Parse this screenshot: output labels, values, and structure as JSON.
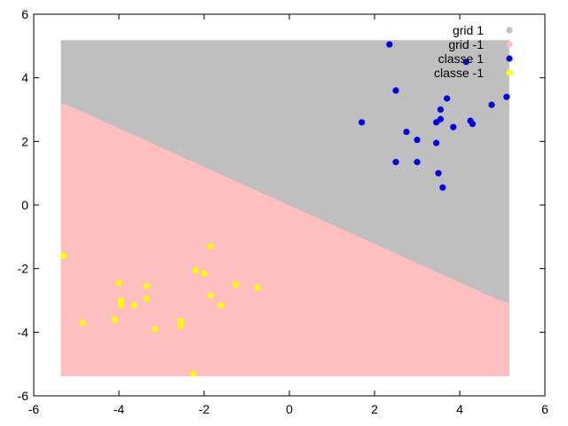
{
  "chart_data": {
    "type": "scatter",
    "title": "",
    "xlabel": "",
    "ylabel": "",
    "xlim": [
      -6,
      6
    ],
    "ylim": [
      -6,
      6
    ],
    "xticks": [
      -6,
      -4,
      -2,
      0,
      2,
      4,
      6
    ],
    "yticks": [
      -6,
      -4,
      -2,
      0,
      2,
      4,
      6
    ],
    "grid": false,
    "legend_position": "top-right",
    "grid_region": {
      "x_range": [
        -5.3,
        5.1
      ],
      "y_range": [
        -5.3,
        5.1
      ],
      "boundary": [
        [
          -5.3,
          3.2
        ],
        [
          5.1,
          -3.1
        ]
      ]
    },
    "series": [
      {
        "name": "grid 1",
        "color": "#bfbfbf",
        "kind": "grid-region-above"
      },
      {
        "name": "grid -1",
        "color": "#ffbfbf",
        "kind": "grid-region-below"
      },
      {
        "name": "classe 1",
        "color": "#0000ee",
        "points": [
          [
            2.35,
            5.05
          ],
          [
            4.15,
            4.5
          ],
          [
            2.5,
            3.6
          ],
          [
            3.7,
            3.35
          ],
          [
            5.1,
            3.4
          ],
          [
            3.55,
            3.0
          ],
          [
            4.75,
            3.15
          ],
          [
            1.7,
            2.6
          ],
          [
            3.45,
            2.6
          ],
          [
            3.55,
            2.7
          ],
          [
            4.25,
            2.65
          ],
          [
            4.3,
            2.55
          ],
          [
            3.85,
            2.45
          ],
          [
            2.75,
            2.3
          ],
          [
            3.0,
            2.05
          ],
          [
            3.45,
            1.95
          ],
          [
            2.5,
            1.35
          ],
          [
            3.0,
            1.35
          ],
          [
            3.5,
            1.0
          ],
          [
            3.6,
            0.55
          ]
        ]
      },
      {
        "name": "classe -1",
        "color": "#ffff00",
        "points": [
          [
            -5.3,
            -1.6
          ],
          [
            -1.85,
            -1.3
          ],
          [
            -2.2,
            -2.05
          ],
          [
            -2.0,
            -2.15
          ],
          [
            -4.0,
            -2.45
          ],
          [
            -3.35,
            -2.55
          ],
          [
            -1.25,
            -2.5
          ],
          [
            -0.75,
            -2.6
          ],
          [
            -1.85,
            -2.85
          ],
          [
            -3.35,
            -2.95
          ],
          [
            -3.95,
            -3.0
          ],
          [
            -3.95,
            -3.15
          ],
          [
            -3.65,
            -3.15
          ],
          [
            -1.6,
            -3.15
          ],
          [
            -4.1,
            -3.6
          ],
          [
            -2.55,
            -3.65
          ],
          [
            -4.85,
            -3.7
          ],
          [
            -2.55,
            -3.8
          ],
          [
            -3.15,
            -3.9
          ],
          [
            -2.25,
            -5.3
          ]
        ]
      }
    ]
  }
}
